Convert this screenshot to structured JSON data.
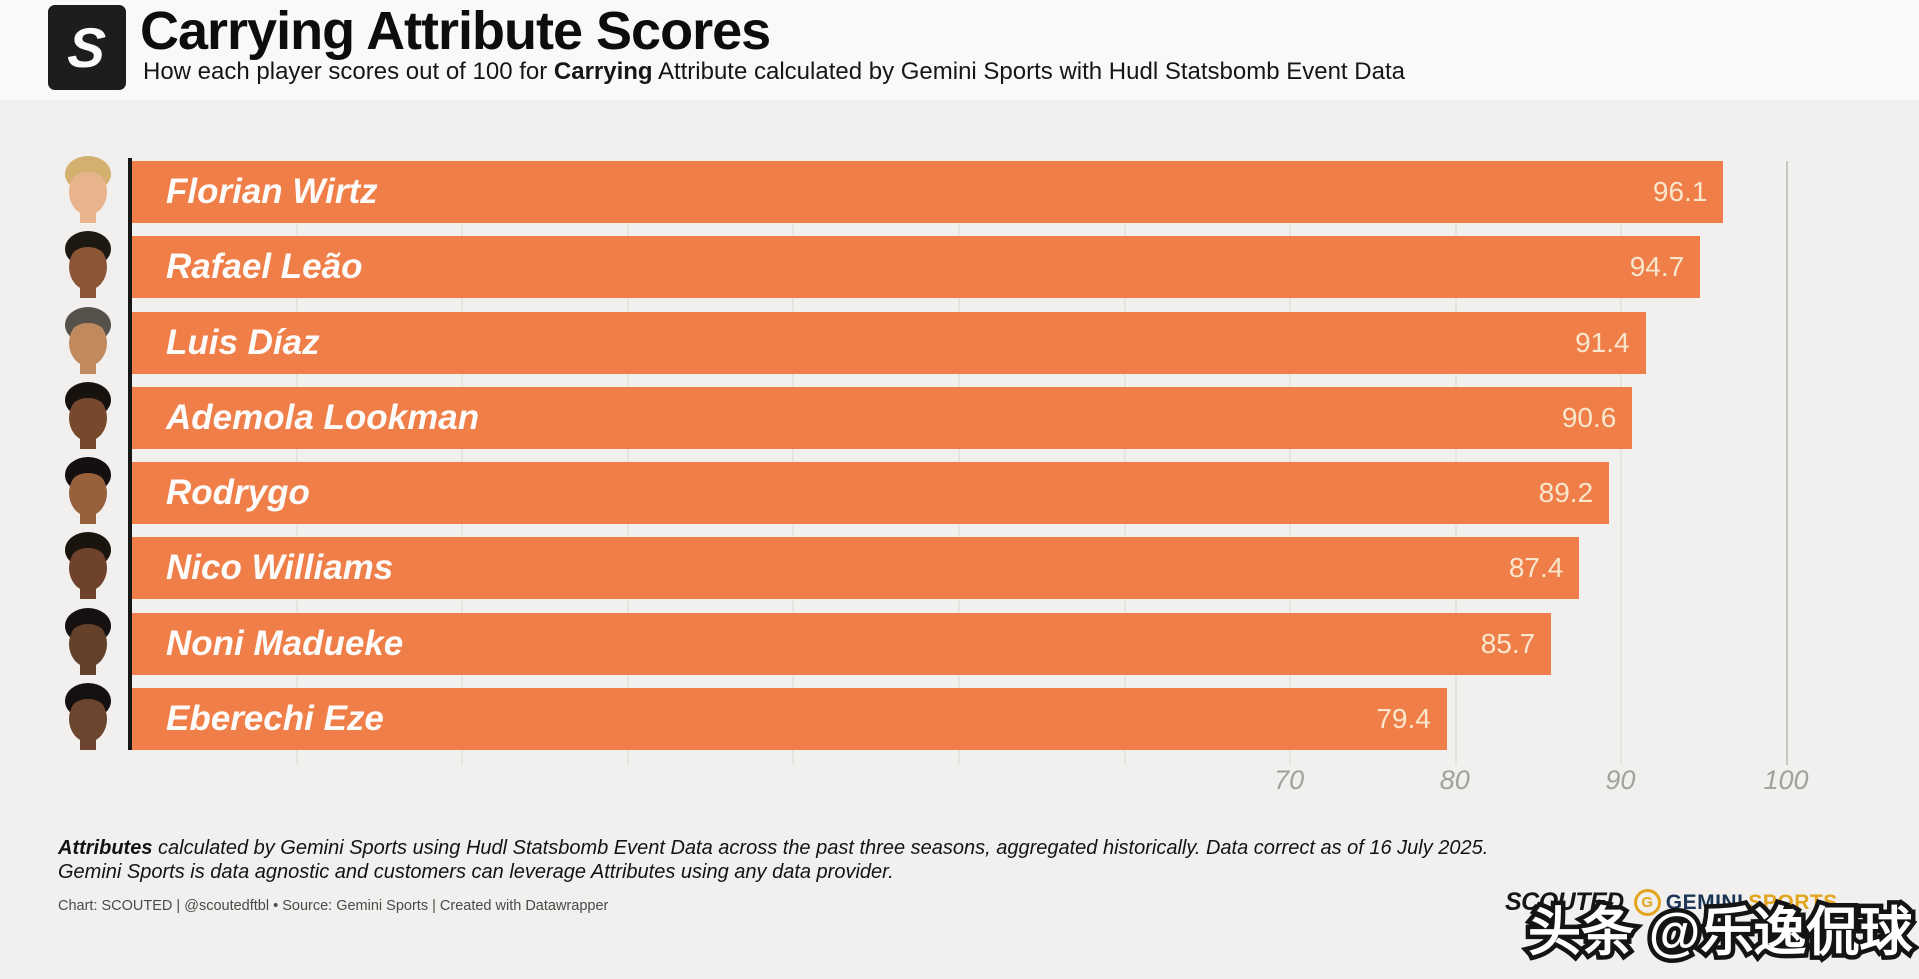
{
  "header": {
    "logo_letter": "S",
    "title": "Carrying Attribute Scores",
    "subtitle": {
      "pre": "How each player scores out of 100 for ",
      "bold": "Carrying",
      "post": " Attribute calculated by Gemini Sports with Hudl Statsbomb Event Data"
    }
  },
  "chart_data": {
    "type": "bar",
    "orientation": "horizontal",
    "title": "Carrying Attribute Scores",
    "categories": [
      "Florian Wirtz",
      "Rafael Leão",
      "Luis Díaz",
      "Ademola Lookman",
      "Rodrygo",
      "Nico Williams",
      "Noni Madueke",
      "Eberechi Eze"
    ],
    "values": [
      96.1,
      94.7,
      91.4,
      90.6,
      89.2,
      87.4,
      85.7,
      79.4
    ],
    "xlabel": "",
    "ylabel": "",
    "xlim": [
      0,
      100
    ],
    "x_tick_labels": [
      "70",
      "80",
      "90",
      "100"
    ],
    "gridline_step": 10,
    "legend": "none",
    "bar_color": "#F07E49",
    "name_label_color": "#FDFCFA",
    "value_label_color": "#F8E7CC"
  },
  "players": [
    {
      "name": "Florian Wirtz",
      "value": "96.1",
      "skin": "#E8B48E",
      "hair": "#D3B06E"
    },
    {
      "name": "Rafael Leão",
      "value": "94.7",
      "skin": "#8A5636",
      "hair": "#1E1812"
    },
    {
      "name": "Luis Díaz",
      "value": "91.4",
      "skin": "#C08A5E",
      "hair": "#57514B"
    },
    {
      "name": "Ademola Lookman",
      "value": "90.6",
      "skin": "#77492C",
      "hair": "#17120E"
    },
    {
      "name": "Rodrygo",
      "value": "89.2",
      "skin": "#96613C",
      "hair": "#141010"
    },
    {
      "name": "Nico Williams",
      "value": "87.4",
      "skin": "#6E422B",
      "hair": "#1A140F"
    },
    {
      "name": "Noni Madueke",
      "value": "85.7",
      "skin": "#63402A",
      "hair": "#161110"
    },
    {
      "name": "Eberechi Eze",
      "value": "79.4",
      "skin": "#6B452E",
      "hair": "#141110"
    }
  ],
  "axis": {
    "ticks": [
      "70",
      "80",
      "90",
      "100"
    ]
  },
  "notes": {
    "line1_bold": "Attributes",
    "line1_rest": " calculated by Gemini Sports using Hudl Statsbomb Event Data across the past three seasons, aggregated historically. Data correct as of 16 July 2025.",
    "line2": "Gemini Sports is data agnostic and customers can leverage Attributes using any data provider."
  },
  "credits": "Chart: SCOUTED | @scoutedftbl • Source: Gemini Sports | Created with Datawrapper",
  "logos": {
    "scouted": "SCOUTED",
    "gemini_g": "G",
    "gemini_word": "GEMINI",
    "sports_word": "SPORTS"
  },
  "watermark": {
    "text": "头条 @乐逸侃球"
  }
}
